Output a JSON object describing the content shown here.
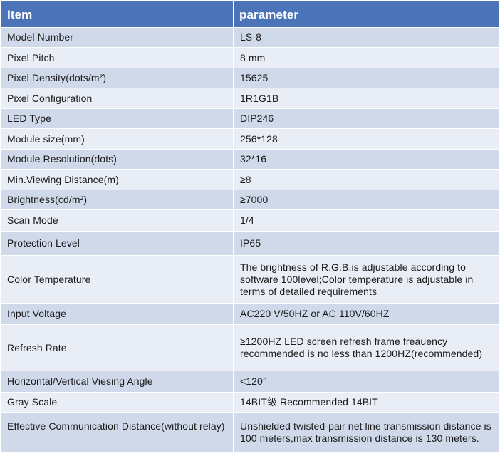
{
  "header": {
    "col1": "Item",
    "col2": "parameter"
  },
  "rows": [
    {
      "item": "Model Number",
      "param": "LS-8"
    },
    {
      "item": "Pixel Pitch",
      "param": "8 mm"
    },
    {
      "item": "Pixel Density(dots/m²)",
      "param": "15625"
    },
    {
      "item": "Pixel Configuration",
      "param": "1R1G1B"
    },
    {
      "item": "LED Type",
      "param": "DIP246"
    },
    {
      "item": "Module size(mm)",
      "param": "256*128"
    },
    {
      "item": "Module Resolution(dots)",
      "param": " 32*16"
    },
    {
      "item": "Min.Viewing Distance(m)",
      "param": "≥8"
    },
    {
      "item": "Brightness(cd/m²)",
      "param": "≥7000"
    },
    {
      "item": "Scan Mode",
      "param": "1/4"
    },
    {
      "item": "Protection Level",
      "param": "IP65"
    },
    {
      "item": "Color Temperature",
      "param": "The brightness of R.G.B.is adjustable according to software 100level;Color temperature is adjustable in terms of detailed requirements"
    },
    {
      "item": "Input Voltage",
      "param": "AC220 V/50HZ or AC 110V/60HZ"
    },
    {
      "item": "Refresh Rate",
      "param": "≥1200HZ  LED screen refresh frame freauency recommended is no less than 1200HZ(recommended)"
    },
    {
      "item": "Horizontal/Vertical Viesing Angle",
      "param": "<120°"
    },
    {
      "item": "Gray Scale",
      "param": "14BIT级 Recommended 14BIT"
    },
    {
      "item": "Effective Communication Distance(without relay)",
      "param": "Unshielded twisted-pair net line transmission distance is 100 meters,max transmission distance is 130 meters."
    }
  ]
}
